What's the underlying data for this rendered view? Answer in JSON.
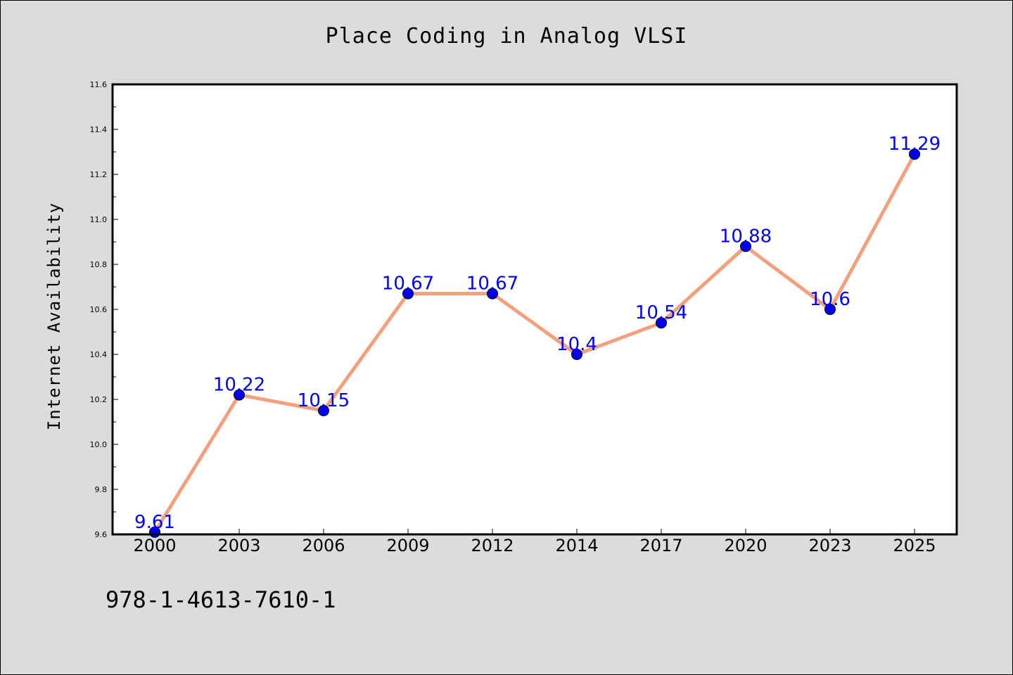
{
  "chart_data": {
    "type": "line",
    "title": "Place Coding in Analog VLSI",
    "xlabel": "",
    "ylabel": "Internet Availability",
    "categories": [
      "2000",
      "2003",
      "2006",
      "2009",
      "2012",
      "2014",
      "2017",
      "2020",
      "2023",
      "2025"
    ],
    "values": [
      9.61,
      10.22,
      10.15,
      10.67,
      10.67,
      10.4,
      10.54,
      10.88,
      10.6,
      11.29
    ],
    "data_labels": [
      "9.61",
      "10.22",
      "10.15",
      "10.67",
      "10.67",
      "10.4",
      "10.54",
      "10.88",
      "10.6",
      "11.29"
    ],
    "ylim": [
      9.6,
      11.6
    ],
    "yticks": [
      "9.6",
      "9.8",
      "10.0",
      "10.2",
      "10.4",
      "10.6",
      "10.8",
      "11.0",
      "11.2",
      "11.4",
      "11.6"
    ],
    "grid": false,
    "line_color": "#f4a07f",
    "marker_color": "#0000ee",
    "label_color": "#0000ff"
  },
  "footer": {
    "isbn": "978-1-4613-7610-1"
  }
}
